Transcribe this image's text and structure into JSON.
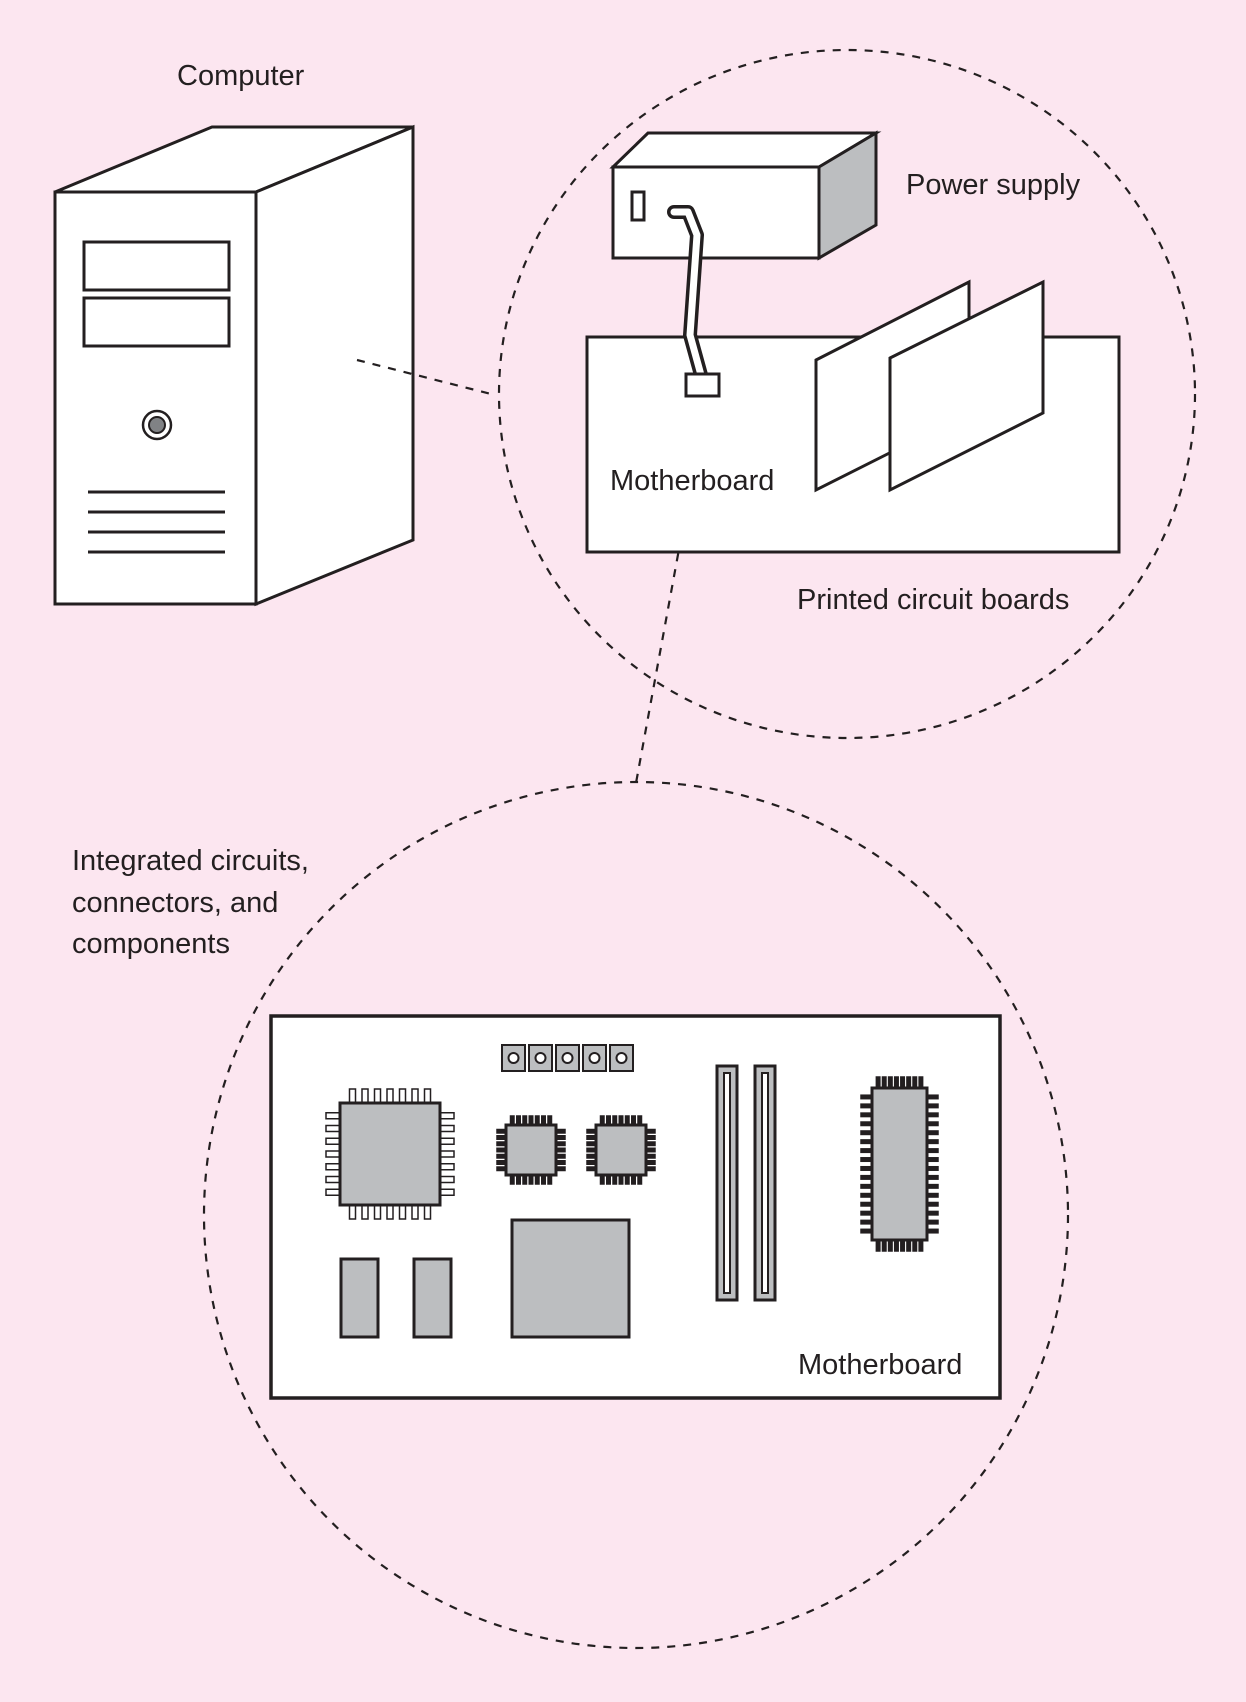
{
  "labels": {
    "computer": "Computer",
    "power_supply": "Power supply",
    "motherboard_top": "Motherboard",
    "printed_circuit_boards": "Printed circuit boards",
    "integrated_line1": "Integrated circuits,",
    "integrated_line2": "connectors, and",
    "integrated_line3": "components",
    "motherboard_bottom": "Motherboard"
  },
  "colors": {
    "background": "#fce6f0",
    "outline": "#231f20",
    "chip_fill": "#bcbec0",
    "panel_fill": "#ffffff"
  }
}
